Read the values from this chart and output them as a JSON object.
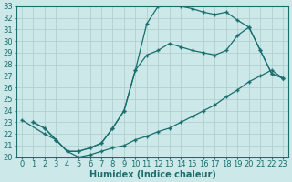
{
  "bg_color": "#cce8e8",
  "line_color": "#1a6e6e",
  "grid_color": "#b0d0d0",
  "xlabel": "Humidex (Indice chaleur)",
  "xlim": [
    -0.5,
    23.5
  ],
  "ylim": [
    20,
    33
  ],
  "xticks": [
    0,
    1,
    2,
    3,
    4,
    5,
    6,
    7,
    8,
    9,
    10,
    11,
    12,
    13,
    14,
    15,
    16,
    17,
    18,
    19,
    20,
    21,
    22,
    23
  ],
  "yticks": [
    20,
    21,
    22,
    23,
    24,
    25,
    26,
    27,
    28,
    29,
    30,
    31,
    32,
    33
  ],
  "line1_x": [
    1,
    2,
    3,
    4,
    5,
    6,
    7,
    8,
    9,
    10,
    11,
    12,
    13,
    14,
    15,
    16,
    17,
    18,
    19,
    20,
    21,
    22,
    23
  ],
  "line1_y": [
    23.0,
    22.5,
    21.5,
    20.5,
    20.5,
    20.8,
    21.2,
    22.5,
    24.0,
    27.5,
    31.5,
    33.0,
    33.2,
    33.0,
    32.8,
    32.5,
    32.3,
    32.5,
    31.8,
    31.2,
    29.2,
    27.2,
    26.8
  ],
  "line2_x": [
    1,
    2,
    3,
    4,
    5,
    6,
    7,
    8,
    9,
    10,
    11,
    12,
    13,
    14,
    15,
    16,
    17,
    18,
    19,
    20,
    21,
    22,
    23
  ],
  "line2_y": [
    23.0,
    22.5,
    21.5,
    20.5,
    20.5,
    20.8,
    21.2,
    22.5,
    24.0,
    27.5,
    28.8,
    29.2,
    29.8,
    29.5,
    29.2,
    29.0,
    28.8,
    29.2,
    30.5,
    31.2,
    29.2,
    27.2,
    26.8
  ],
  "line3_x": [
    0,
    2,
    3,
    4,
    5,
    6,
    7,
    8,
    9,
    10,
    11,
    12,
    13,
    14,
    15,
    16,
    17,
    18,
    19,
    20,
    21,
    22,
    23
  ],
  "line3_y": [
    23.2,
    22.0,
    21.5,
    20.5,
    20.0,
    20.2,
    20.5,
    20.8,
    21.0,
    21.5,
    21.8,
    22.2,
    22.5,
    23.0,
    23.5,
    24.0,
    24.5,
    25.2,
    25.8,
    26.5,
    27.0,
    27.5,
    26.8
  ],
  "marker": "+",
  "markersize": 3,
  "linewidth": 0.9,
  "label_fontsize": 7,
  "tick_fontsize": 6
}
